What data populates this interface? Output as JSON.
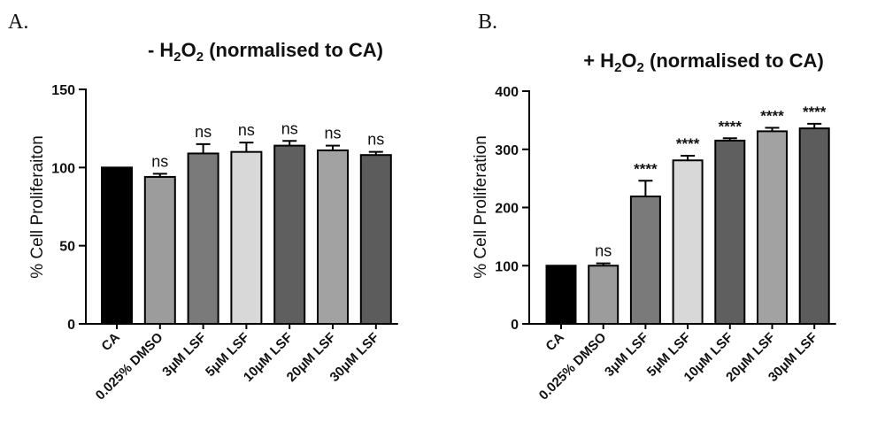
{
  "chart_data": [
    {
      "type": "bar",
      "panel_label": "A.",
      "title": {
        "prefix": "- H",
        "sub1": "2",
        "mid": "O",
        "sub2": "2",
        "suffix": " (normalised to CA)"
      },
      "ylabel": "% Cell Proliferaiton",
      "xlabel": "",
      "ylim": [
        0,
        150
      ],
      "yticks": [
        "0",
        "50",
        "100",
        "150"
      ],
      "categories": [
        "CA",
        "0.025% DMSO",
        "3μM LSF",
        "5μM LSF",
        "10μM LSF",
        "20μM LSF",
        "30μM LSF"
      ],
      "values": [
        100,
        94,
        109,
        110,
        114,
        111,
        108
      ],
      "errors": [
        0,
        2,
        6,
        6,
        3,
        3,
        2
      ],
      "significance": [
        "",
        "ns",
        "ns",
        "ns",
        "ns",
        "ns",
        "ns"
      ],
      "colors": [
        "#000000",
        "#9c9c9c",
        "#7a7a7a",
        "#d8d8d8",
        "#5f5f5f",
        "#a2a2a2",
        "#5c5c5c"
      ],
      "grid": false,
      "legend": "none"
    },
    {
      "type": "bar",
      "panel_label": "B.",
      "title": {
        "prefix": "+ H",
        "sub1": "2",
        "mid": "O",
        "sub2": "2",
        "suffix": " (normalised to CA)"
      },
      "ylabel": "% Cell Proliferation",
      "xlabel": "",
      "ylim": [
        0,
        400
      ],
      "yticks": [
        "0",
        "100",
        "200",
        "300",
        "400"
      ],
      "categories": [
        "CA",
        "0.025% DMSO",
        "3μM LSF",
        "5μM LSF",
        "10μM LSF",
        "20μM LSF",
        "30μM LSF"
      ],
      "values": [
        100,
        100,
        219,
        281,
        315,
        331,
        336
      ],
      "errors": [
        0,
        4,
        27,
        8,
        4,
        6,
        8
      ],
      "significance": [
        "",
        "ns",
        "****",
        "****",
        "****",
        "****",
        "****"
      ],
      "colors": [
        "#000000",
        "#9c9c9c",
        "#7a7a7a",
        "#d8d8d8",
        "#5f5f5f",
        "#a2a2a2",
        "#5c5c5c"
      ],
      "grid": false,
      "legend": "none"
    }
  ]
}
